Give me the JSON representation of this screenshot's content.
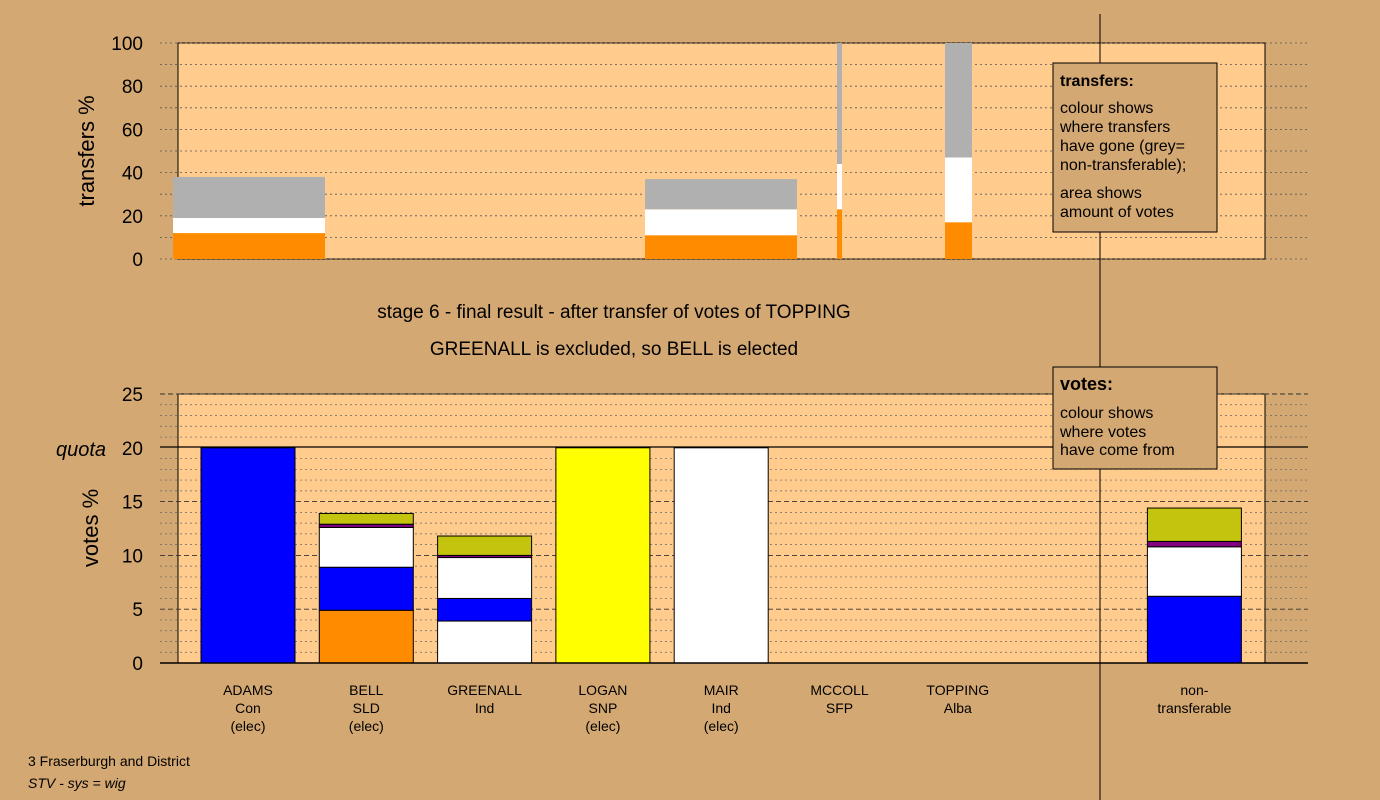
{
  "colors": {
    "background": "#d4a872",
    "plot_area": "#ffcc8e",
    "con": "#0000ff",
    "sld": "#ff8c00",
    "ind": "#ffffff",
    "snp": "#ffff00",
    "sfp": "#800080",
    "alba": "#c4c40e",
    "nontransferable": "#b0b0b0"
  },
  "title": {
    "line1": "stage 6 - final result - after transfer of votes of TOPPING",
    "line2": "GREENALL is excluded, so BELL is elected"
  },
  "footer": {
    "line1": "3 Fraserburgh and District",
    "line2": "STV - sys = wig"
  },
  "transfers_legend": {
    "title": "transfers:",
    "lines": [
      "colour shows",
      "where transfers",
      "have gone (grey=",
      "non-transferable);"
    ],
    "lines2": [
      "area shows",
      "amount of votes"
    ]
  },
  "votes_legend": {
    "title": "votes:",
    "lines": [
      "colour shows",
      "where votes",
      "have come from"
    ]
  },
  "chart_data": [
    {
      "type": "bar",
      "subtype": "stacked",
      "ylabel": "transfers %",
      "ylim": [
        0,
        100
      ],
      "yticks": [
        0,
        20,
        40,
        60,
        80,
        100
      ],
      "grid": "dotted every 10",
      "bars": [
        {
          "segments": [
            {
              "color": "sld",
              "value": 12
            },
            {
              "color": "ind",
              "value": 7
            },
            {
              "color": "nontransferable",
              "value": 19
            }
          ]
        },
        {
          "segments": [
            {
              "color": "sld",
              "value": 11
            },
            {
              "color": "ind",
              "value": 12
            },
            {
              "color": "nontransferable",
              "value": 14
            }
          ]
        },
        {
          "segments": [
            {
              "color": "sld",
              "value": 23
            },
            {
              "color": "ind",
              "value": 21
            },
            {
              "color": "nontransferable",
              "value": 56
            }
          ]
        },
        {
          "segments": [
            {
              "color": "sld",
              "value": 17
            },
            {
              "color": "ind",
              "value": 30
            },
            {
              "color": "nontransferable",
              "value": 53
            }
          ]
        }
      ]
    },
    {
      "type": "bar",
      "subtype": "stacked",
      "ylabel": "votes %",
      "ylim": [
        0,
        25
      ],
      "yticks": [
        0,
        5,
        10,
        15,
        20,
        25
      ],
      "quota": {
        "label": "quota",
        "value": 20
      },
      "grid": "dotted every 1, dashed every 5",
      "categories": [
        {
          "name": "ADAMS",
          "party": "Con",
          "status": "(elec)"
        },
        {
          "name": "BELL",
          "party": "SLD",
          "status": "(elec)"
        },
        {
          "name": "GREENALL",
          "party": "Ind",
          "status": ""
        },
        {
          "name": "LOGAN",
          "party": "SNP",
          "status": "(elec)"
        },
        {
          "name": "MAIR",
          "party": "Ind",
          "status": "(elec)"
        },
        {
          "name": "MCCOLL",
          "party": "SFP",
          "status": ""
        },
        {
          "name": "TOPPING",
          "party": "Alba",
          "status": ""
        },
        {
          "name": "",
          "party": "",
          "status": ""
        },
        {
          "name": "non-",
          "party": "transferable",
          "status": ""
        }
      ],
      "stacks": [
        [
          {
            "color": "con",
            "value": 20
          }
        ],
        [
          {
            "color": "sld",
            "value": 4.9
          },
          {
            "color": "con",
            "value": 4.0
          },
          {
            "color": "ind",
            "value": 3.7
          },
          {
            "color": "sfp",
            "value": 0.3
          },
          {
            "color": "alba",
            "value": 1.0
          }
        ],
        [
          {
            "color": "ind",
            "value": 3.9
          },
          {
            "color": "con",
            "value": 2.1
          },
          {
            "color": "ind",
            "value": 3.8
          },
          {
            "color": "sfp",
            "value": 0.2
          },
          {
            "color": "alba",
            "value": 1.8
          }
        ],
        [
          {
            "color": "snp",
            "value": 20
          }
        ],
        [
          {
            "color": "ind",
            "value": 20
          }
        ],
        [],
        [],
        [],
        [
          {
            "color": "con",
            "value": 6.2
          },
          {
            "color": "ind",
            "value": 4.6
          },
          {
            "color": "sfp",
            "value": 0.5
          },
          {
            "color": "alba",
            "value": 3.1
          }
        ]
      ]
    }
  ]
}
